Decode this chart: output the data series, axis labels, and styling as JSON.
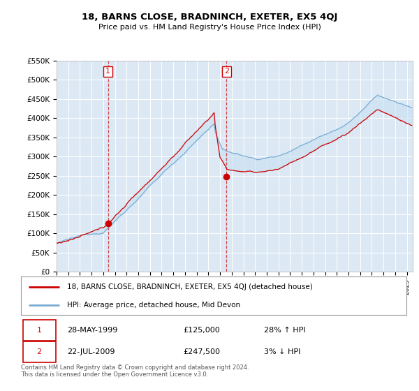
{
  "title": "18, BARNS CLOSE, BRADNINCH, EXETER, EX5 4QJ",
  "subtitle": "Price paid vs. HM Land Registry's House Price Index (HPI)",
  "ylim": [
    0,
    550000
  ],
  "yticks": [
    0,
    50000,
    100000,
    150000,
    200000,
    250000,
    300000,
    350000,
    400000,
    450000,
    500000,
    550000
  ],
  "ytick_labels": [
    "£0",
    "£50K",
    "£100K",
    "£150K",
    "£200K",
    "£250K",
    "£300K",
    "£350K",
    "£400K",
    "£450K",
    "£500K",
    "£550K"
  ],
  "background_color": "#ffffff",
  "plot_bg_color": "#dce9f5",
  "grid_color": "#ffffff",
  "line1_color": "#cc0000",
  "line2_color": "#7aadd4",
  "transaction1": {
    "year": 1999.41,
    "price": 125000,
    "label": "1",
    "date": "28-MAY-1999",
    "amount": "£125,000",
    "pct": "28% ↑ HPI"
  },
  "transaction2": {
    "year": 2009.55,
    "price": 247500,
    "label": "2",
    "date": "22-JUL-2009",
    "amount": "£247,500",
    "pct": "3% ↓ HPI"
  },
  "legend_line1": "18, BARNS CLOSE, BRADNINCH, EXETER, EX5 4QJ (detached house)",
  "legend_line2": "HPI: Average price, detached house, Mid Devon",
  "footer": "Contains HM Land Registry data © Crown copyright and database right 2024.\nThis data is licensed under the Open Government Licence v3.0.",
  "xlim_start": 1995.0,
  "xlim_end": 2025.5
}
